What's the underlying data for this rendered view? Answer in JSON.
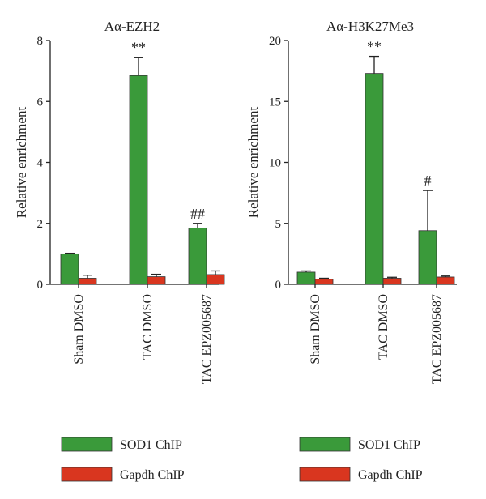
{
  "chart_data": [
    {
      "type": "bar",
      "title": "Aα-EZH2",
      "ylabel": "Relative enrichment",
      "ylim": [
        0,
        8
      ],
      "yticks": [
        "0",
        "2",
        "4",
        "6",
        "8"
      ],
      "categories": [
        "Sham DMSO",
        "TAC DMSO",
        "TAC EPZ005687"
      ],
      "series": [
        {
          "name": "SOD1 ChIP",
          "values": [
            1.0,
            6.85,
            1.85
          ],
          "errors": [
            0.02,
            0.6,
            0.15
          ]
        },
        {
          "name": "Gapdh ChIP",
          "values": [
            0.2,
            0.25,
            0.32
          ],
          "errors": [
            0.1,
            0.08,
            0.12
          ]
        }
      ],
      "annotations": [
        {
          "category": "TAC DMSO",
          "text": "**"
        },
        {
          "category": "TAC EPZ005687",
          "text": "##"
        }
      ]
    },
    {
      "type": "bar",
      "title": "Aα-H3K27Me3",
      "ylabel": "Relative enrichment",
      "ylim": [
        0,
        20
      ],
      "yticks": [
        "0",
        "5",
        "10",
        "15",
        "20"
      ],
      "categories": [
        "Sham DMSO",
        "TAC DMSO",
        "TAC EPZ005687"
      ],
      "series": [
        {
          "name": "SOD1 ChIP",
          "values": [
            1.0,
            17.3,
            4.4
          ],
          "errors": [
            0.1,
            1.4,
            3.3
          ]
        },
        {
          "name": "Gapdh ChIP",
          "values": [
            0.42,
            0.5,
            0.6
          ],
          "errors": [
            0.08,
            0.08,
            0.08
          ]
        }
      ],
      "annotations": [
        {
          "category": "TAC DMSO",
          "text": "**"
        },
        {
          "category": "TAC EPZ005687",
          "text": "#"
        }
      ]
    }
  ],
  "colors": {
    "SOD1 ChIP": "#3a9a3a",
    "Gapdh ChIP": "#d9361f"
  },
  "legend": [
    {
      "label": "SOD1 ChIP"
    },
    {
      "label": "Gapdh ChIP"
    }
  ]
}
